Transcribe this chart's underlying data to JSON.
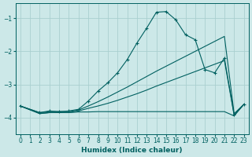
{
  "xlabel": "Humidex (Indice chaleur)",
  "bg_color": "#cce8e8",
  "grid_color": "#aacfcf",
  "line_color": "#006060",
  "xlim": [
    -0.5,
    23.5
  ],
  "ylim": [
    -4.5,
    -0.55
  ],
  "yticks": [
    -4,
    -3,
    -2,
    -1
  ],
  "xticks": [
    0,
    1,
    2,
    3,
    4,
    5,
    6,
    7,
    8,
    9,
    10,
    11,
    12,
    13,
    14,
    15,
    16,
    17,
    18,
    19,
    20,
    21,
    22,
    23
  ],
  "s1_x": [
    0,
    2,
    3,
    4,
    5,
    6,
    7,
    8,
    9,
    10,
    11,
    12,
    13,
    14,
    15,
    16,
    17,
    18,
    19,
    20,
    21,
    22,
    23
  ],
  "s1_y": [
    -3.65,
    -3.85,
    -3.8,
    -3.82,
    -3.8,
    -3.75,
    -3.5,
    -3.2,
    -2.95,
    -2.65,
    -2.25,
    -1.75,
    -1.3,
    -0.82,
    -0.8,
    -1.05,
    -1.5,
    -1.65,
    -2.55,
    -2.65,
    -2.2,
    -3.92,
    -3.6
  ],
  "s2_x": [
    0,
    2,
    3,
    4,
    5,
    6,
    7,
    8,
    9,
    10,
    11,
    12,
    13,
    14,
    15,
    16,
    17,
    18,
    19,
    20,
    21,
    22,
    23
  ],
  "s2_y": [
    -3.65,
    -3.88,
    -3.85,
    -3.85,
    -3.85,
    -3.83,
    -3.83,
    -3.82,
    -3.82,
    -3.82,
    -3.82,
    -3.82,
    -3.82,
    -3.82,
    -3.82,
    -3.82,
    -3.82,
    -3.82,
    -3.82,
    -3.82,
    -3.82,
    -3.95,
    -3.6
  ],
  "s3_x": [
    0,
    2,
    3,
    4,
    5,
    6,
    7,
    8,
    9,
    10,
    11,
    12,
    13,
    14,
    15,
    16,
    17,
    18,
    19,
    20,
    21,
    22,
    23
  ],
  "s3_y": [
    -3.65,
    -3.88,
    -3.85,
    -3.85,
    -3.85,
    -3.8,
    -3.72,
    -3.65,
    -3.57,
    -3.48,
    -3.38,
    -3.28,
    -3.17,
    -3.05,
    -2.94,
    -2.83,
    -2.72,
    -2.61,
    -2.5,
    -2.39,
    -2.28,
    -3.93,
    -3.6
  ],
  "s4_x": [
    0,
    2,
    3,
    4,
    5,
    6,
    7,
    8,
    9,
    10,
    11,
    12,
    13,
    14,
    15,
    16,
    17,
    18,
    19,
    20,
    21,
    22,
    23
  ],
  "s4_y": [
    -3.65,
    -3.85,
    -3.82,
    -3.82,
    -3.82,
    -3.77,
    -3.65,
    -3.52,
    -3.38,
    -3.23,
    -3.08,
    -2.92,
    -2.76,
    -2.6,
    -2.45,
    -2.3,
    -2.15,
    -2.0,
    -1.85,
    -1.7,
    -1.55,
    -3.88,
    -3.6
  ]
}
